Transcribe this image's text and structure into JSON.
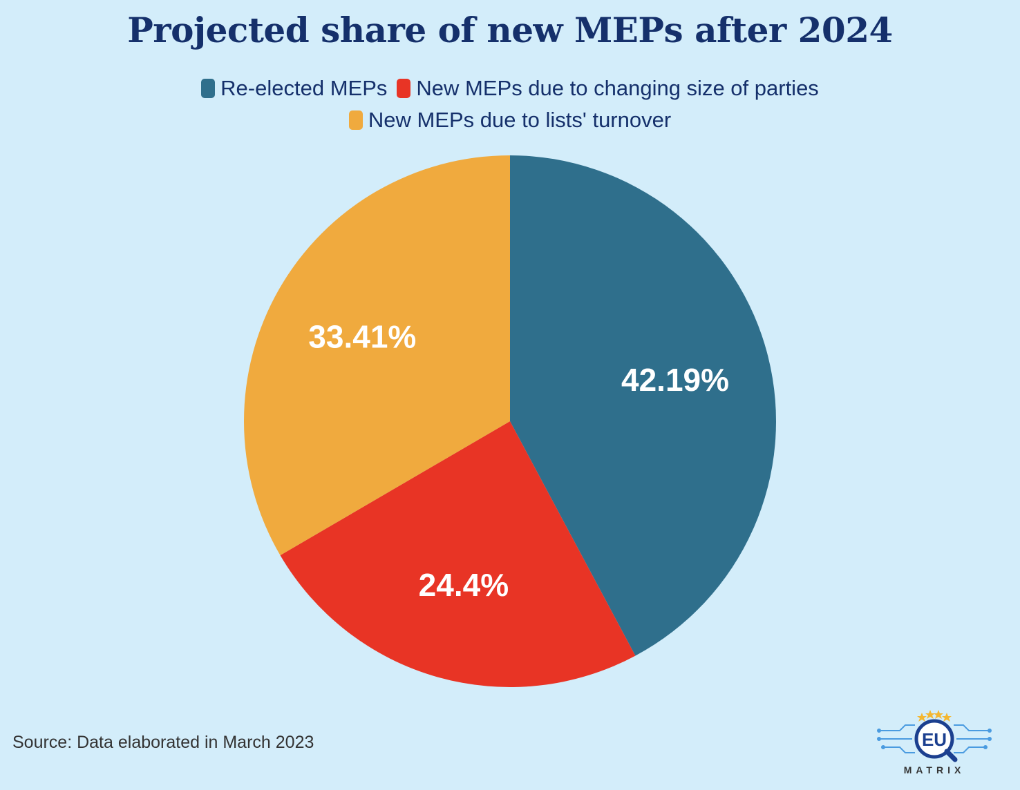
{
  "title": "Projected share of new MEPs after 2024",
  "legend": [
    {
      "label": "Re-elected MEPs",
      "color": "#2f6f8c"
    },
    {
      "label": "New MEPs due to changing size of parties",
      "color": "#e83425"
    },
    {
      "label": "New MEPs due to lists' turnover",
      "color": "#f0aa3e"
    }
  ],
  "chart_data": {
    "type": "pie",
    "title": "Projected share of new MEPs after 2024",
    "categories": [
      "Re-elected MEPs",
      "New MEPs due to changing size of parties",
      "New MEPs due to lists' turnover"
    ],
    "values": [
      42.19,
      24.4,
      33.41
    ],
    "labels": [
      "42.19%",
      "24.4%",
      "33.41%"
    ],
    "colors": [
      "#2f6f8c",
      "#e83425",
      "#f0aa3e"
    ],
    "start_angle": "top, clockwise",
    "legend_position": "top"
  },
  "source": "Source: Data elaborated in March 2023",
  "logo": {
    "text": "EU",
    "subtext": "MATRIX"
  }
}
